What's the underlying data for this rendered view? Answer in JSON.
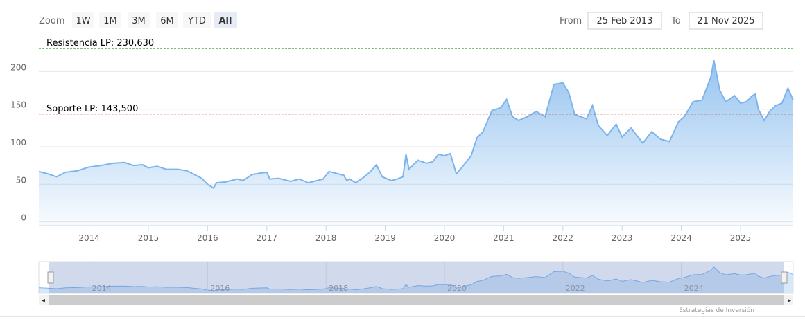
{
  "range_selector": {
    "zoom_label": "Zoom",
    "buttons": [
      "1W",
      "1M",
      "3M",
      "6M",
      "YTD",
      "All"
    ],
    "selected": 5,
    "from_label": "From",
    "from_date": "25 Feb 2013",
    "to_label": "To",
    "to_date": "21 Nov 2025"
  },
  "chart_data": {
    "type": "area",
    "x": [
      2013.15,
      2013.3,
      2013.45,
      2013.6,
      2013.8,
      2014.0,
      2014.2,
      2014.4,
      2014.6,
      2014.75,
      2014.9,
      2015.0,
      2015.15,
      2015.3,
      2015.5,
      2015.65,
      2015.8,
      2015.9,
      2016.0,
      2016.1,
      2016.15,
      2016.3,
      2016.5,
      2016.6,
      2016.75,
      2016.9,
      2017.0,
      2017.05,
      2017.2,
      2017.4,
      2017.55,
      2017.7,
      2017.85,
      2017.95,
      2018.05,
      2018.2,
      2018.3,
      2018.35,
      2018.4,
      2018.5,
      2018.6,
      2018.75,
      2018.85,
      2018.95,
      2019.1,
      2019.2,
      2019.3,
      2019.35,
      2019.4,
      2019.55,
      2019.7,
      2019.8,
      2019.9,
      2020.0,
      2020.1,
      2020.2,
      2020.3,
      2020.45,
      2020.55,
      2020.65,
      2020.8,
      2020.95,
      2021.05,
      2021.15,
      2021.25,
      2021.4,
      2021.55,
      2021.7,
      2021.85,
      2022.0,
      2022.1,
      2022.2,
      2022.3,
      2022.4,
      2022.5,
      2022.6,
      2022.75,
      2022.9,
      2023.0,
      2023.15,
      2023.25,
      2023.35,
      2023.5,
      2023.65,
      2023.8,
      2023.95,
      2024.05,
      2024.2,
      2024.35,
      2024.5,
      2024.55,
      2024.65,
      2024.75,
      2024.9,
      2025.0,
      2025.1,
      2025.2,
      2025.25,
      2025.3,
      2025.4,
      2025.5,
      2025.6,
      2025.7,
      2025.8,
      2025.89
    ],
    "series": [
      {
        "color": "#7cb5ec",
        "values": [
          67,
          64,
          60,
          66,
          68,
          73,
          75,
          78,
          79,
          75,
          76,
          72,
          74,
          70,
          70,
          68,
          62,
          58,
          50,
          45,
          52,
          53,
          57,
          55,
          63,
          65,
          66,
          57,
          58,
          54,
          57,
          52,
          55,
          57,
          67,
          64,
          62,
          55,
          57,
          52,
          57,
          67,
          76,
          60,
          55,
          57,
          60,
          90,
          70,
          82,
          78,
          80,
          90,
          88,
          91,
          64,
          73,
          88,
          112,
          120,
          148,
          152,
          163,
          140,
          135,
          140,
          147,
          140,
          183,
          185,
          172,
          143,
          140,
          137,
          155,
          128,
          115,
          130,
          113,
          125,
          115,
          105,
          120,
          110,
          107,
          133,
          140,
          160,
          162,
          193,
          215,
          175,
          160,
          168,
          158,
          160,
          168,
          170,
          150,
          135,
          148,
          155,
          158,
          178,
          162
        ]
      }
    ],
    "xlim": [
      2013.15,
      2025.89
    ],
    "ylim": [
      -5,
      240
    ],
    "xticks": [
      2014,
      2015,
      2016,
      2017,
      2018,
      2019,
      2020,
      2021,
      2022,
      2023,
      2024,
      2025
    ],
    "yticks": [
      0,
      50,
      100,
      150,
      200
    ],
    "grid": true,
    "plot_lines": [
      {
        "label": "Resistencia LP: 230,630",
        "value": 230.63,
        "color": "#2e9a2e"
      },
      {
        "label": "Soporte LP: 143,500",
        "value": 143.5,
        "color": "#d62728"
      }
    ],
    "navigator_xticks": [
      2014,
      2016,
      2018,
      2020,
      2022,
      2024
    ]
  },
  "credits": "Estrategias de Inversión"
}
